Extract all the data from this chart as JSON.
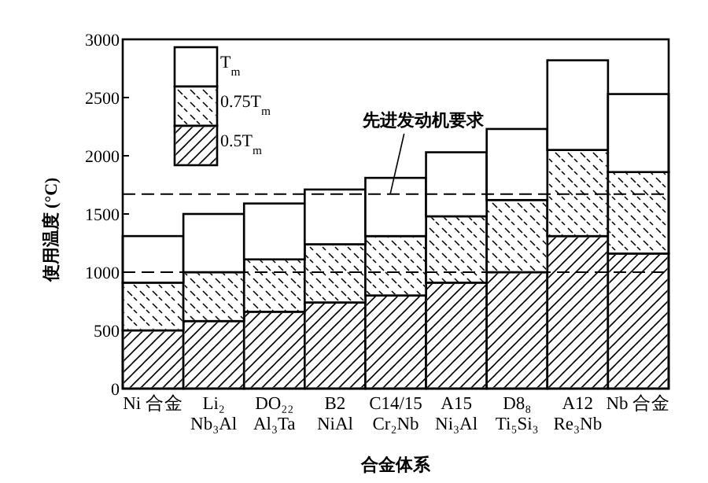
{
  "chart_data": {
    "type": "bar",
    "stacked": true,
    "categories": [
      "Ni 合金",
      "Li₂\nNb₃Al",
      "DO₂₂\nAl₃Ta",
      "B2\nNiAl",
      "C14/15\nCr₂Nb",
      "A15\nNi₃Al",
      "D8₈\nTi₅Si₃",
      "A12\nRe₃Nb",
      "Nb 合金"
    ],
    "series": [
      {
        "name": "0.5T$_{m}$",
        "color": "#ffffff",
        "values": [
          500,
          580,
          660,
          740,
          800,
          910,
          1000,
          1310,
          1160
        ]
      },
      {
        "name": "0.75T$_{m}$",
        "color": "#ffffff",
        "values": [
          410,
          420,
          450,
          500,
          510,
          570,
          620,
          740,
          700
        ]
      },
      {
        "name": "T$_{m}$",
        "color": "#ffffff",
        "values": [
          400,
          500,
          480,
          470,
          500,
          550,
          610,
          770,
          670
        ]
      }
    ],
    "xlabel": "合金体系",
    "ylabel": "使用温度 (°C)",
    "ylim": [
      0,
      3000
    ],
    "yticks": [
      0,
      500,
      1000,
      1500,
      2000,
      2500,
      3000
    ],
    "ref_lines": [
      {
        "axis": "y",
        "value": 1670,
        "label": "先进发动机要求",
        "line_style": "dashed"
      },
      {
        "axis": "y",
        "value": 1000,
        "line_style": "dashed"
      }
    ],
    "legend": "top left",
    "grid": false
  }
}
